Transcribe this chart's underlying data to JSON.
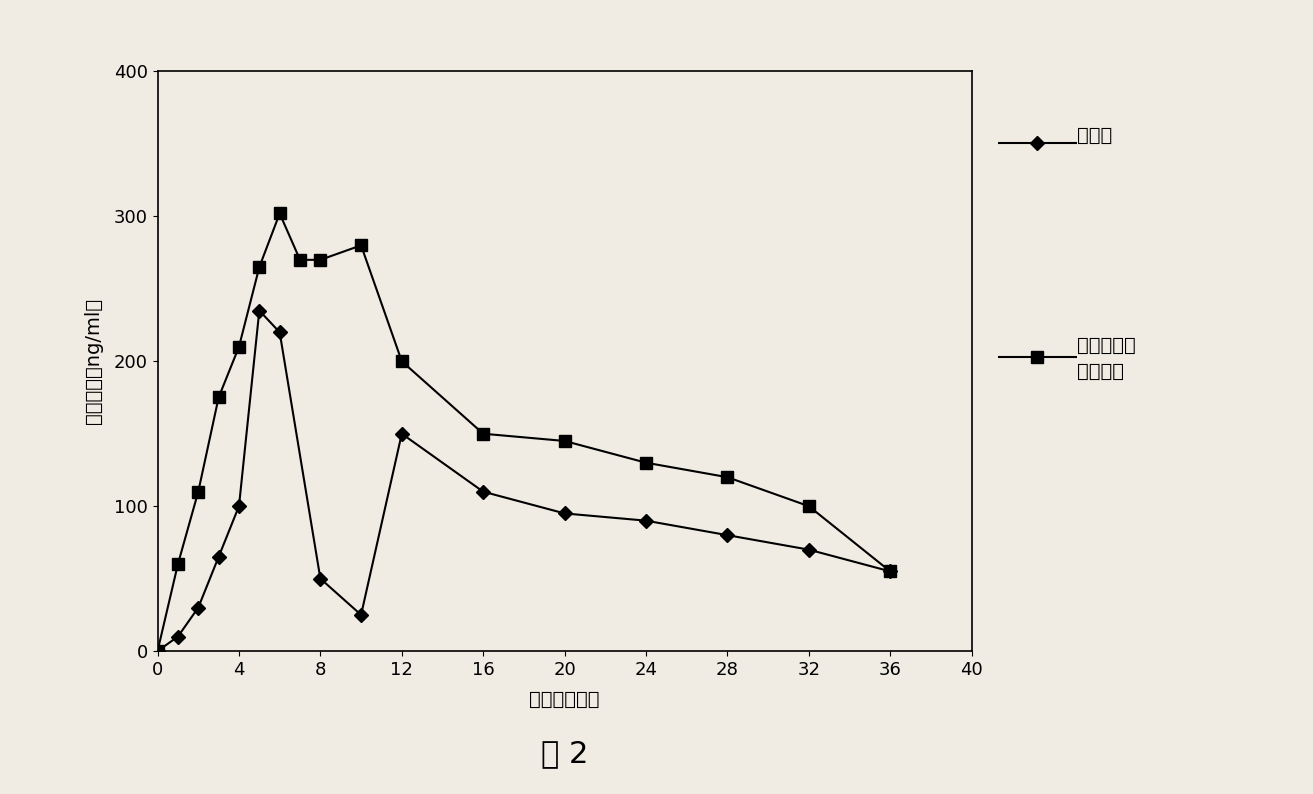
{
  "line1_label": "瑞易宁",
  "line2_label_1": "本发明格列",
  "line2_label_2": "吵唐制剂",
  "line1_x": [
    0,
    1,
    2,
    3,
    4,
    5,
    6,
    8,
    10,
    12,
    16,
    20,
    24,
    28,
    32,
    36
  ],
  "line1_y": [
    0,
    10,
    30,
    65,
    100,
    235,
    220,
    50,
    25,
    150,
    110,
    95,
    90,
    80,
    70,
    55
  ],
  "line2_x": [
    0,
    1,
    2,
    3,
    4,
    5,
    6,
    7,
    8,
    10,
    12,
    16,
    20,
    24,
    28,
    32,
    36
  ],
  "line2_y": [
    0,
    60,
    110,
    175,
    210,
    265,
    302,
    270,
    270,
    280,
    200,
    150,
    145,
    130,
    120,
    100,
    55
  ],
  "xlabel": "时间（小时）",
  "ylabel": "血药浓度（ng/ml）",
  "figure_label": "图 2",
  "xlim": [
    0,
    40
  ],
  "ylim": [
    0,
    400
  ],
  "xticks": [
    0,
    4,
    8,
    12,
    16,
    20,
    24,
    28,
    32,
    36,
    40
  ],
  "yticks": [
    0,
    100,
    200,
    300,
    400
  ],
  "line1_color": "#000000",
  "line2_color": "#000000",
  "background_color": "#f0ece4",
  "plot_bg_color": "#f0ece4",
  "axis_fontsize": 14,
  "tick_fontsize": 13,
  "legend_fontsize": 14,
  "figure_label_fontsize": 22
}
